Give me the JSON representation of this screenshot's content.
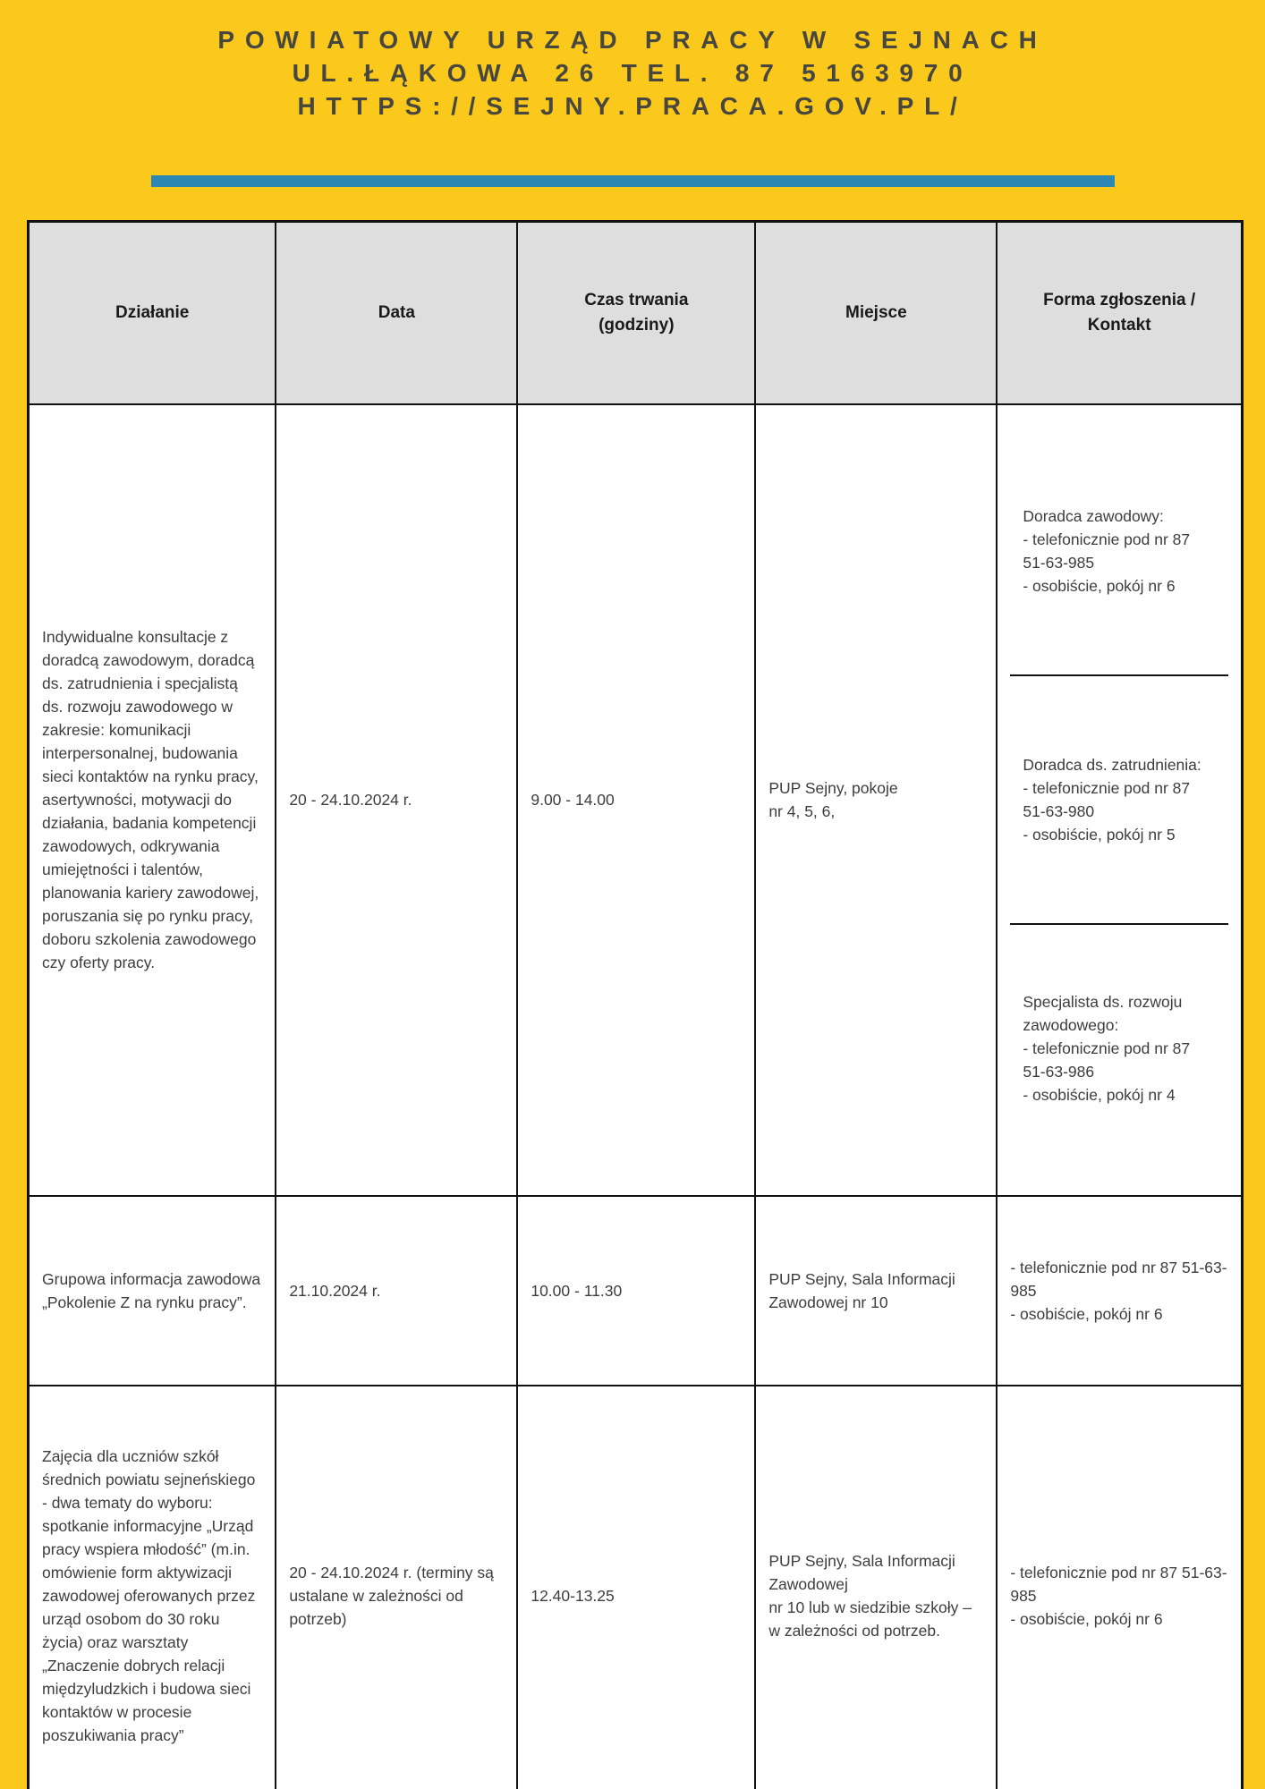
{
  "page": {
    "colors": {
      "bg": "#FBC91B",
      "accent": "#2D87B5",
      "title_color": "#474740",
      "table_border": "#111111",
      "header_bg": "#DEDEDE",
      "header_text": "#1A1A1A",
      "body_text": "#3D3D3D"
    }
  },
  "letterhead": {
    "line1": "POWIATOWY URZĄD PRACY W SEJNACH",
    "line2": "UL.ŁĄKOWA 26 TEL. 87 5163970",
    "line3": "HTTPS://SEJNY.PRACA.GOV.PL/"
  },
  "table": {
    "headers": {
      "action": "Działanie",
      "date": "Data",
      "duration": "Czas trwania\n(godziny)",
      "place": "Miejsce",
      "contact": "Forma zgłoszenia /\nKontakt"
    },
    "row1": {
      "action": "Indywidualne konsultacje z doradcą zawodowym, doradcą ds. zatrudnienia i specjalistą ds. rozwoju zawodowego w zakresie: komunikacji interpersonalnej, budowania sieci kontaktów na rynku pracy, asertywności, motywacji do działania, badania kompetencji zawodowych, odkrywania umiejętności i talentów, planowania kariery zawodowej, poruszania się po rynku pracy, doboru szkolenia zawodowego czy oferty pracy.",
      "date": "20 - 24.10.2024 r.",
      "duration": "9.00 - 14.00",
      "place": "PUP Sejny, pokoje\nnr 4, 5, 6,",
      "contact1": "Doradca zawodowy:\n- telefonicznie pod nr 87 51-63-985\n- osobiście, pokój nr 6",
      "contact2": "Doradca ds. zatrudnienia:\n- telefonicznie pod nr 87 51-63-980\n- osobiście, pokój nr 5",
      "contact3": "Specjalista ds. rozwoju zawodowego:\n- telefonicznie pod nr 87 51-63-986\n- osobiście, pokój nr 4"
    },
    "row2": {
      "action": "Grupowa informacja zawodowa „Pokolenie Z na rynku pracy”.",
      "date": "21.10.2024 r.",
      "duration": "10.00 - 11.30",
      "place": "PUP Sejny, Sala Informacji Zawodowej nr 10",
      "contact": "- telefonicznie pod nr 87 51-63-985\n- osobiście, pokój nr 6"
    },
    "row3": {
      "action": "Zajęcia dla uczniów szkół średnich powiatu sejneńskiego - dwa tematy do wyboru: spotkanie informacyjne „Urząd pracy wspiera młodość” (m.in. omówienie form aktywizacji zawodowej oferowanych przez urząd osobom do 30 roku życia) oraz warsztaty „Znaczenie dobrych relacji międzyludzkich i budowa sieci kontaktów w procesie poszukiwania pracy”",
      "date": "20 - 24.10.2024 r. (terminy są ustalane w zależności od potrzeb)",
      "duration": "12.40-13.25",
      "place": "PUP Sejny, Sala Informacji Zawodowej\nnr 10 lub w siedzibie szkoły – w zależności od potrzeb.",
      "contact": "- telefonicznie pod nr 87 51-63-985\n- osobiście, pokój nr 6"
    }
  }
}
